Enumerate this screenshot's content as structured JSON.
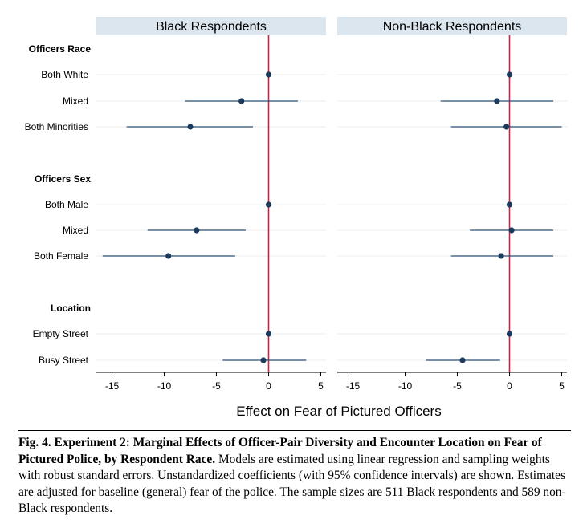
{
  "chart_data": {
    "type": "forest",
    "xlabel": "Effect on Fear of Pictured Officers",
    "xlim": [
      -16.5,
      5.5
    ],
    "xticks": [
      -15,
      -10,
      -5,
      0,
      5
    ],
    "xtick_labels": [
      "-15",
      "-10",
      "-5",
      "0",
      "5"
    ],
    "reference_line": 0,
    "grid": "horizontal light lines at each row",
    "colors": {
      "point": "#1b3a5c",
      "ci": "#2a4d72",
      "reference": "#c1274a",
      "panel_header": "#dce6ee",
      "grid": "#eeeeee"
    },
    "groups": [
      "Officers Race",
      "Officers Sex",
      "Location"
    ],
    "rows": [
      {
        "group": "Officers Race",
        "label": "Both White"
      },
      {
        "group": "Officers Race",
        "label": "Mixed"
      },
      {
        "group": "Officers Race",
        "label": "Both Minorities"
      },
      {
        "group": "Officers Sex",
        "label": "Both Male"
      },
      {
        "group": "Officers Sex",
        "label": "Mixed"
      },
      {
        "group": "Officers Sex",
        "label": "Both Female"
      },
      {
        "group": "Location",
        "label": "Empty Street"
      },
      {
        "group": "Location",
        "label": "Busy Street"
      }
    ],
    "panels": [
      {
        "title": "Black Respondents",
        "estimates": [
          {
            "est": 0,
            "lo": null,
            "hi": null
          },
          {
            "est": -2.6,
            "lo": -8.0,
            "hi": 2.8
          },
          {
            "est": -7.5,
            "lo": -13.6,
            "hi": -1.5
          },
          {
            "est": 0,
            "lo": null,
            "hi": null
          },
          {
            "est": -6.9,
            "lo": -11.6,
            "hi": -2.2
          },
          {
            "est": -9.6,
            "lo": -15.9,
            "hi": -3.2
          },
          {
            "est": 0,
            "lo": null,
            "hi": null
          },
          {
            "est": -0.5,
            "lo": -4.4,
            "hi": 3.6
          }
        ]
      },
      {
        "title": "Non-Black Respondents",
        "estimates": [
          {
            "est": 0,
            "lo": null,
            "hi": null
          },
          {
            "est": -1.2,
            "lo": -6.6,
            "hi": 4.2
          },
          {
            "est": -0.3,
            "lo": -5.6,
            "hi": 5.0
          },
          {
            "est": 0,
            "lo": null,
            "hi": null
          },
          {
            "est": 0.2,
            "lo": -3.8,
            "hi": 4.2
          },
          {
            "est": -0.8,
            "lo": -5.6,
            "hi": 4.2
          },
          {
            "est": 0,
            "lo": null,
            "hi": null
          },
          {
            "est": -4.5,
            "lo": -8.0,
            "hi": -0.9
          }
        ]
      }
    ]
  },
  "caption": {
    "bold": "Fig. 4. Experiment 2: Marginal Effects of Officer-Pair Diversity and Encounter Location on Fear of Pictured Police, by Respondent Race.",
    "text": " Models are estimated using linear regression and sampling weights with robust standard errors. Unstandardized coefficients (with 95% confidence intervals) are shown. Estimates are adjusted for baseline (general) fear of the police. The sample sizes are 511 Black respondents and 589 non-Black respondents."
  }
}
